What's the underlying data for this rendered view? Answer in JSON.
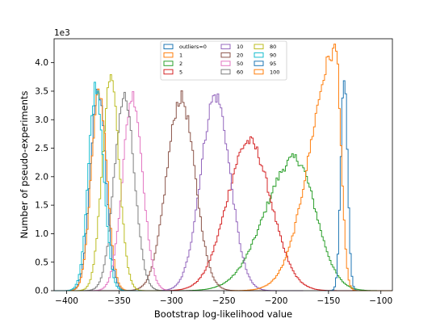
{
  "chart_data": {
    "type": "line",
    "drawstyle": "steps",
    "xlabel": "Bootstrap log-likelihood value",
    "ylabel": "Number of pseudo-experiments",
    "y_scale_label": "1e3",
    "xlim": [
      -412,
      -89
    ],
    "ylim": [
      0,
      4.42
    ],
    "x_ticks": [
      -400,
      -350,
      -300,
      -250,
      -200,
      -150,
      -100
    ],
    "x_tick_labels": [
      "−400",
      "−350",
      "−300",
      "−250",
      "−200",
      "−150",
      "−100"
    ],
    "y_ticks": [
      0,
      0.5,
      1.0,
      1.5,
      2.0,
      2.5,
      3.0,
      3.5,
      4.0
    ],
    "y_tick_labels": [
      "0.0",
      "0.5",
      "1.0",
      "1.5",
      "2.0",
      "2.5",
      "3.0",
      "3.5",
      "4.0"
    ],
    "grid": false,
    "legend_placement": "top-center",
    "legend_columns": 3,
    "bin_width": 1.5,
    "series": [
      {
        "name": "outliers=0",
        "color": "#1f77b4",
        "shape": "gaussian",
        "mean": -370,
        "sd": 7.2,
        "peak": 3.55
      },
      {
        "name": "1",
        "color": "#ff7f0e",
        "shape": "gaussian",
        "mean": -369,
        "sd": 7.4,
        "peak": 3.5
      },
      {
        "name": "2",
        "color": "#2ca02c",
        "shape": "gaussian",
        "mean": -182,
        "sd": 24,
        "peak": 2.32,
        "skew": -0.6
      },
      {
        "name": "5",
        "color": "#d62728",
        "shape": "gaussian",
        "mean": -226,
        "sd": 21,
        "peak": 2.62
      },
      {
        "name": "10",
        "color": "#9467bd",
        "shape": "gaussian",
        "mean": -258,
        "sd": 14,
        "peak": 3.42
      },
      {
        "name": "20",
        "color": "#8c564b",
        "shape": "gaussian",
        "mean": -291,
        "sd": 13.5,
        "peak": 3.38
      },
      {
        "name": "50",
        "color": "#e377c2",
        "shape": "gaussian",
        "mean": -337,
        "sd": 9.5,
        "peak": 3.42
      },
      {
        "name": "60",
        "color": "#7f7f7f",
        "shape": "gaussian",
        "mean": -345,
        "sd": 9.5,
        "peak": 3.4
      },
      {
        "name": "80",
        "color": "#bcbd22",
        "shape": "gaussian",
        "mean": -358,
        "sd": 8.0,
        "peak": 3.72
      },
      {
        "name": "90",
        "color": "#17becf",
        "shape": "gaussian",
        "mean": -372,
        "sd": 7.2,
        "peak": 3.6
      },
      {
        "name": "95",
        "color": "#1f77b4",
        "shape": "gaussian",
        "mean": -135,
        "sd": 3.2,
        "peak": 3.78
      },
      {
        "name": "100",
        "color": "#ff7f0e",
        "shape": "skewed",
        "mean": -143,
        "sd_left": 24,
        "sd_right": 5,
        "peak": 4.22
      }
    ]
  }
}
